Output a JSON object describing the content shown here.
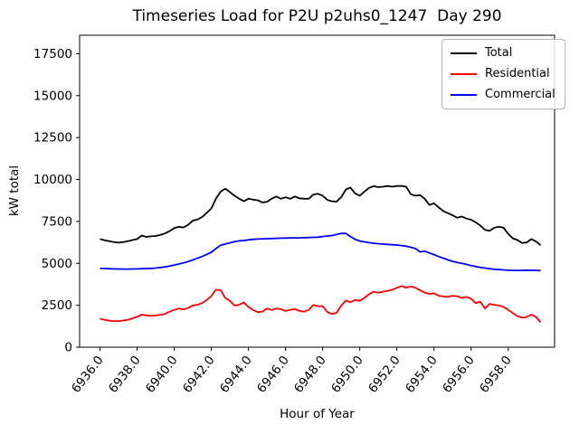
{
  "chart_data": {
    "type": "line",
    "title": "Timeseries Load for P2U p2uhs0_1247  Day 290",
    "xlabel": "Hour of Year",
    "ylabel": "kW total",
    "grid": false,
    "legend_position": "upper right",
    "xlim": [
      6934.9,
      6960.5
    ],
    "ylim": [
      0,
      18600
    ],
    "x_tick_values": [
      6936,
      6938,
      6940,
      6942,
      6944,
      6946,
      6948,
      6950,
      6952,
      6954,
      6956,
      6958
    ],
    "x_tick_labels": [
      "6936.0",
      "6938.0",
      "6940.0",
      "6942.0",
      "6944.0",
      "6946.0",
      "6948.0",
      "6950.0",
      "6952.0",
      "6954.0",
      "6956.0",
      "6958.0"
    ],
    "y_tick_values": [
      0,
      2500,
      5000,
      7500,
      10000,
      12500,
      15000,
      17500
    ],
    "y_tick_labels": [
      "0",
      "2500",
      "5000",
      "7500",
      "10000",
      "12500",
      "15000",
      "17500"
    ],
    "x": [
      6936.0,
      6936.25,
      6936.5,
      6936.75,
      6937.0,
      6937.25,
      6937.5,
      6937.75,
      6938.0,
      6938.25,
      6938.5,
      6938.75,
      6939.0,
      6939.25,
      6939.5,
      6939.75,
      6940.0,
      6940.25,
      6940.5,
      6940.75,
      6941.0,
      6941.25,
      6941.5,
      6941.75,
      6942.0,
      6942.25,
      6942.5,
      6942.75,
      6943.0,
      6943.25,
      6943.5,
      6943.75,
      6944.0,
      6944.25,
      6944.5,
      6944.75,
      6945.0,
      6945.25,
      6945.5,
      6945.75,
      6946.0,
      6946.25,
      6946.5,
      6946.75,
      6947.0,
      6947.25,
      6947.5,
      6947.75,
      6948.0,
      6948.25,
      6948.5,
      6948.75,
      6949.0,
      6949.25,
      6949.5,
      6949.75,
      6950.0,
      6950.25,
      6950.5,
      6950.75,
      6951.0,
      6951.25,
      6951.5,
      6951.75,
      6952.0,
      6952.25,
      6952.5,
      6952.75,
      6953.0,
      6953.25,
      6953.5,
      6953.75,
      6954.0,
      6954.25,
      6954.5,
      6954.75,
      6955.0,
      6955.25,
      6955.5,
      6955.75,
      6956.0,
      6956.25,
      6956.5,
      6956.75,
      6957.0,
      6957.25,
      6957.5,
      6957.75,
      6958.0,
      6958.25,
      6958.5,
      6958.75,
      6959.0,
      6959.25,
      6959.5,
      6959.75
    ],
    "series": [
      {
        "name": "Total",
        "color": "#000000",
        "values": [
          6450,
          6380,
          6320,
          6270,
          6230,
          6270,
          6320,
          6390,
          6450,
          6660,
          6580,
          6610,
          6630,
          6690,
          6780,
          6920,
          7100,
          7180,
          7140,
          7300,
          7540,
          7610,
          7760,
          8010,
          8270,
          8850,
          9280,
          9450,
          9250,
          9030,
          8850,
          8700,
          8850,
          8800,
          8760,
          8630,
          8670,
          8850,
          8990,
          8850,
          8940,
          8850,
          8990,
          8880,
          8850,
          8850,
          9100,
          9150,
          9030,
          8780,
          8700,
          8680,
          8950,
          9400,
          9520,
          9170,
          9030,
          9280,
          9500,
          9600,
          9540,
          9570,
          9610,
          9570,
          9610,
          9610,
          9570,
          9120,
          9030,
          9070,
          8850,
          8480,
          8580,
          8340,
          8120,
          7990,
          7870,
          7720,
          7790,
          7670,
          7600,
          7450,
          7250,
          7000,
          6940,
          7120,
          7180,
          7120,
          6760,
          6490,
          6390,
          6210,
          6250,
          6450,
          6300,
          6080
        ]
      },
      {
        "name": "Residential",
        "color": "#ff0000",
        "values": [
          1700,
          1630,
          1580,
          1560,
          1555,
          1590,
          1630,
          1720,
          1810,
          1940,
          1900,
          1870,
          1890,
          1930,
          1980,
          2120,
          2220,
          2310,
          2250,
          2340,
          2490,
          2530,
          2630,
          2820,
          3040,
          3430,
          3400,
          2940,
          2760,
          2490,
          2530,
          2670,
          2400,
          2220,
          2090,
          2120,
          2310,
          2220,
          2310,
          2270,
          2160,
          2220,
          2270,
          2160,
          2120,
          2220,
          2520,
          2450,
          2450,
          2100,
          1980,
          2050,
          2480,
          2780,
          2680,
          2820,
          2760,
          2940,
          3160,
          3310,
          3250,
          3310,
          3360,
          3430,
          3540,
          3650,
          3540,
          3620,
          3540,
          3400,
          3250,
          3180,
          3220,
          3070,
          3030,
          3000,
          3070,
          3040,
          2940,
          3000,
          2890,
          2630,
          2710,
          2310,
          2580,
          2530,
          2490,
          2400,
          2220,
          2030,
          1850,
          1760,
          1800,
          1940,
          1800,
          1490
        ]
      },
      {
        "name": "Commercial",
        "color": "#0000ff",
        "values": [
          4700,
          4690,
          4680,
          4670,
          4665,
          4660,
          4660,
          4665,
          4670,
          4680,
          4690,
          4700,
          4720,
          4750,
          4790,
          4840,
          4900,
          4960,
          5030,
          5110,
          5200,
          5300,
          5410,
          5530,
          5660,
          5880,
          6080,
          6150,
          6220,
          6290,
          6340,
          6360,
          6400,
          6430,
          6450,
          6460,
          6470,
          6480,
          6490,
          6500,
          6510,
          6515,
          6520,
          6525,
          6530,
          6540,
          6550,
          6560,
          6600,
          6630,
          6660,
          6720,
          6790,
          6780,
          6600,
          6430,
          6330,
          6280,
          6230,
          6200,
          6170,
          6150,
          6130,
          6110,
          6090,
          6060,
          6020,
          5960,
          5880,
          5680,
          5730,
          5620,
          5520,
          5410,
          5310,
          5210,
          5120,
          5050,
          5000,
          4940,
          4870,
          4810,
          4760,
          4720,
          4680,
          4650,
          4630,
          4610,
          4590,
          4580,
          4575,
          4580,
          4590,
          4580,
          4575,
          4570
        ]
      }
    ]
  }
}
